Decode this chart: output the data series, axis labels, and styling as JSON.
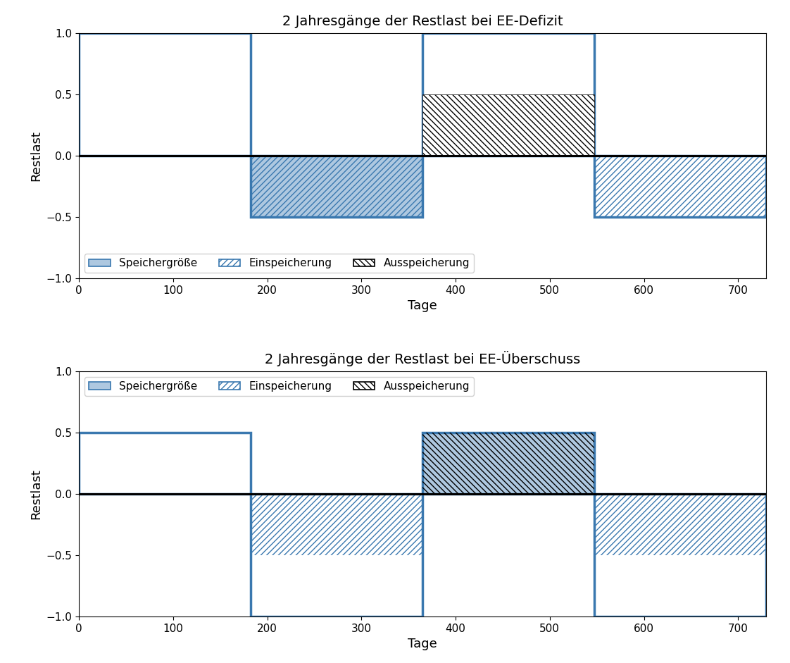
{
  "title_top": "2 Jahresgänge der Restlast bei EE-Defizit",
  "title_bot": "2 Jahresgänge der Restlast bei EE-Überschuss",
  "xlabel": "Tage",
  "ylabel": "Restlast",
  "xlim": [
    -5,
    730
  ],
  "ylim": [
    -1.1,
    1.1
  ],
  "ylim_display": [
    -1.0,
    1.0
  ],
  "xticks": [
    0,
    100,
    200,
    300,
    400,
    500,
    600,
    700
  ],
  "yticks": [
    -1.0,
    -0.5,
    0.0,
    0.5,
    1.0
  ],
  "bar_edges": [
    0,
    182,
    365,
    547,
    730
  ],
  "blue_color": "#3a78af",
  "light_blue": "#aec8e0",
  "linewidth": 2.5,
  "legend_labels": [
    "Speichergröße",
    "Einspeicherung",
    "Ausspeicherung"
  ]
}
